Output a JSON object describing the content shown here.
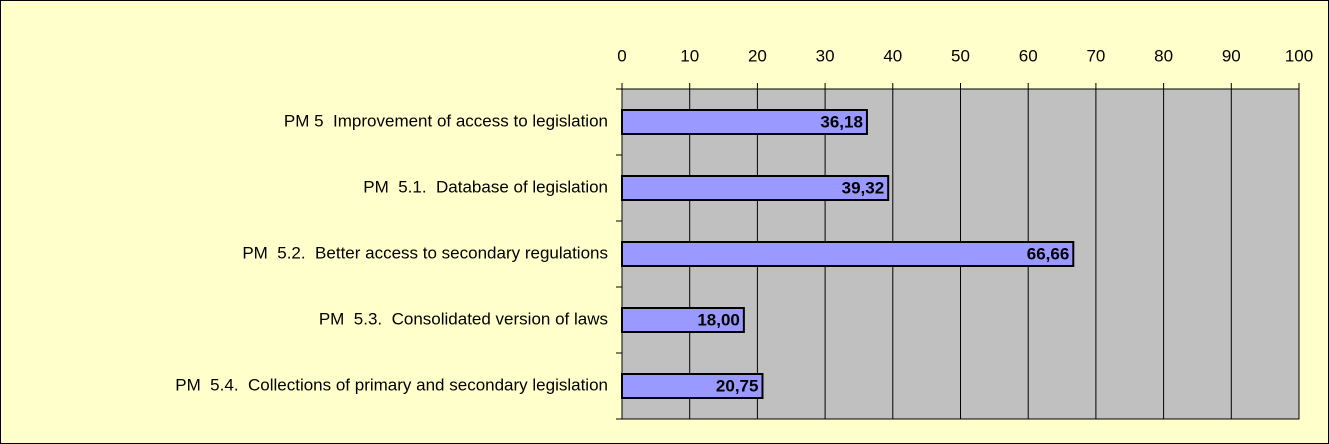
{
  "chart_data": {
    "type": "bar",
    "orientation": "horizontal",
    "categories": [
      "PM 5  Improvement of access to legislation",
      "PM  5.1.  Database of legislation",
      "PM  5.2.  Better access to secondary regulations",
      "PM  5.3.  Consolidated version of laws",
      "PM  5.4.  Collections of primary and secondary legislation"
    ],
    "values": [
      36.18,
      39.32,
      66.66,
      18.0,
      20.75
    ],
    "value_labels": [
      "36,18",
      "39,32",
      "66,66",
      "18,00",
      "20,75"
    ],
    "color": "#9999ff",
    "xlim": [
      0,
      100
    ],
    "xticks": [
      0,
      10,
      20,
      30,
      40,
      50,
      60,
      70,
      80,
      90,
      100
    ],
    "grid": true
  }
}
